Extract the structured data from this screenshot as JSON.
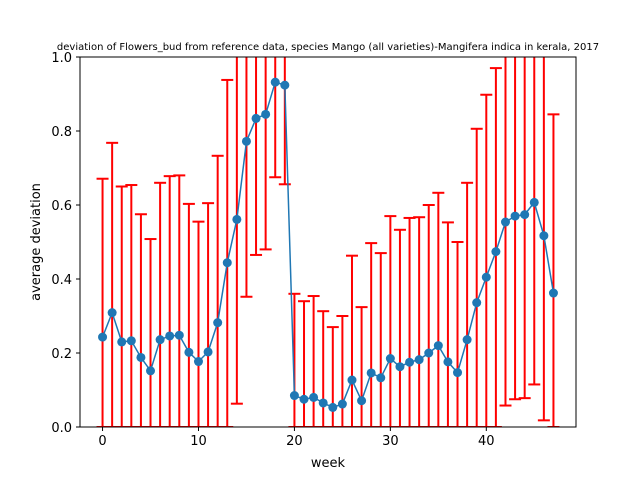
{
  "chart_data": {
    "type": "line",
    "title": "deviation of Flowers_bud from reference data, species Mango (all varieties)-Mangifera indica in kerala, 2017",
    "xlabel": "week",
    "ylabel": "average deviation",
    "xlim": [
      -2.35,
      49.35
    ],
    "ylim": [
      0.0,
      1.0
    ],
    "xticks": [
      0,
      10,
      20,
      30,
      40
    ],
    "yticks": [
      0.0,
      0.2,
      0.4,
      0.6,
      0.8,
      1.0
    ],
    "ytick_labels": [
      "0.0",
      "0.2",
      "0.4",
      "0.6",
      "0.8",
      "1.0"
    ],
    "grid": false,
    "line_color": "#1f77b4",
    "errorbar_color": "#ff0000",
    "x": [
      0,
      1,
      2,
      3,
      4,
      5,
      6,
      7,
      8,
      9,
      10,
      11,
      12,
      13,
      14,
      15,
      16,
      17,
      18,
      19,
      20,
      21,
      22,
      23,
      24,
      25,
      26,
      27,
      28,
      29,
      30,
      31,
      32,
      33,
      34,
      35,
      36,
      37,
      38,
      39,
      40,
      41,
      42,
      43,
      44,
      45,
      46,
      47
    ],
    "y": [
      0.243,
      0.309,
      0.23,
      0.233,
      0.188,
      0.152,
      0.236,
      0.246,
      0.248,
      0.202,
      0.177,
      0.203,
      0.282,
      0.444,
      0.561,
      0.772,
      0.834,
      0.845,
      0.932,
      0.924,
      0.085,
      0.075,
      0.08,
      0.065,
      0.053,
      0.062,
      0.127,
      0.071,
      0.146,
      0.133,
      0.185,
      0.163,
      0.175,
      0.182,
      0.2,
      0.22,
      0.176,
      0.147,
      0.236,
      0.336,
      0.405,
      0.474,
      0.554,
      0.57,
      0.574,
      0.607,
      0.517,
      0.362
    ],
    "err_low": [
      0.0,
      0.0,
      0.0,
      0.0,
      0.0,
      0.0,
      0.0,
      0.0,
      0.0,
      0.0,
      0.0,
      0.0,
      0.0,
      0.0,
      0.063,
      0.352,
      0.465,
      0.48,
      0.675,
      0.656,
      0.0,
      0.0,
      0.0,
      0.0,
      0.0,
      0.0,
      0.0,
      0.0,
      0.0,
      0.0,
      0.0,
      0.0,
      0.0,
      0.0,
      0.0,
      0.0,
      0.0,
      0.0,
      0.0,
      0.0,
      0.0,
      0.0,
      0.058,
      0.075,
      0.078,
      0.115,
      0.018,
      0.0
    ],
    "err_high": [
      0.671,
      0.768,
      0.65,
      0.654,
      0.575,
      0.508,
      0.66,
      0.678,
      0.68,
      0.603,
      0.555,
      0.605,
      0.733,
      0.938,
      1.06,
      1.19,
      1.21,
      1.21,
      1.19,
      1.19,
      0.36,
      0.34,
      0.354,
      0.313,
      0.27,
      0.3,
      0.463,
      0.324,
      0.497,
      0.47,
      0.57,
      0.533,
      0.565,
      0.567,
      0.6,
      0.633,
      0.553,
      0.5,
      0.66,
      0.806,
      0.898,
      0.97,
      1.05,
      1.07,
      1.07,
      1.1,
      1.02,
      0.845
    ]
  }
}
